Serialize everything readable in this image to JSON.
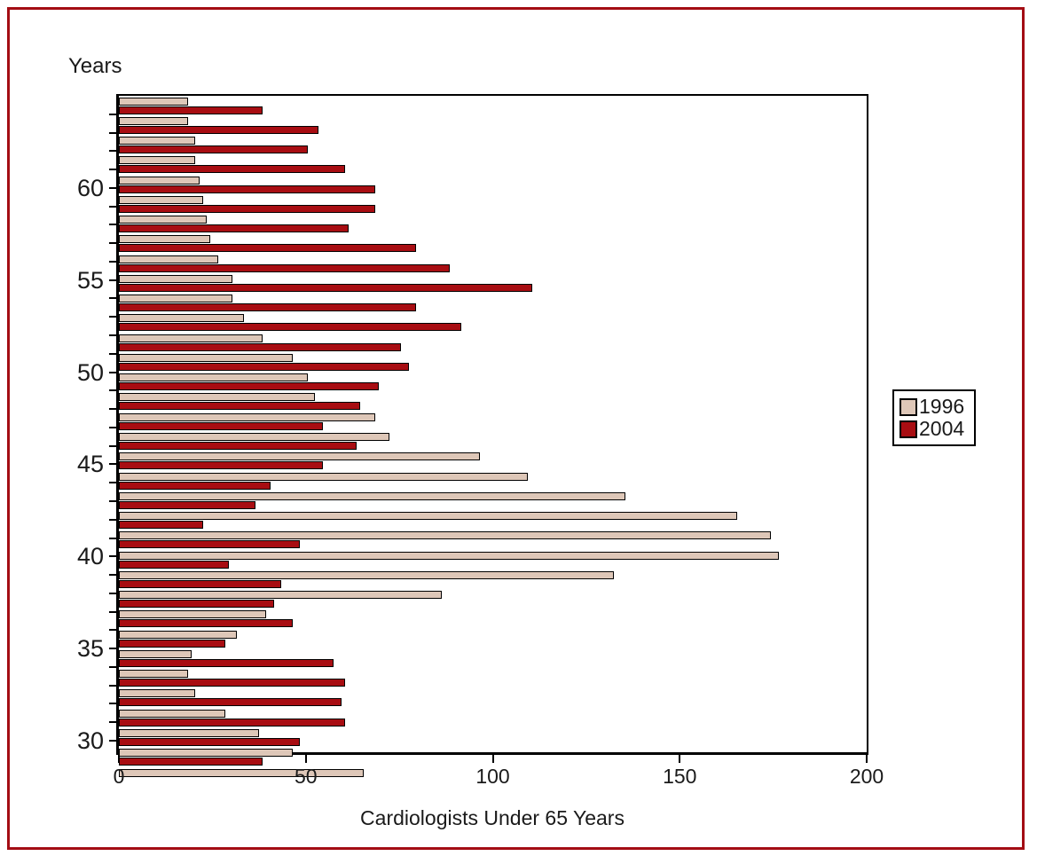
{
  "frame": {
    "border_color": "#A30D14"
  },
  "chart_data": {
    "type": "bar",
    "orientation": "horizontal",
    "title": "",
    "xlabel": "Cardiologists Under 65 Years",
    "ylabel": "Years",
    "xlim": [
      0,
      200
    ],
    "x_ticks": [
      0,
      50,
      100,
      150,
      200
    ],
    "y_tick_labels": [
      60,
      55,
      50,
      45,
      40,
      35,
      30
    ],
    "grid": false,
    "legend": {
      "position": "right",
      "entries": [
        {
          "label": "1996",
          "color": "#DEC7B8"
        },
        {
          "label": "2004",
          "color": "#A80D12"
        }
      ]
    },
    "categories": [
      64,
      63,
      62,
      61,
      60,
      59,
      58,
      57,
      56,
      55,
      54,
      53,
      52,
      51,
      50,
      49,
      48,
      47,
      46,
      45,
      44,
      43,
      42,
      41,
      40,
      39,
      38,
      37,
      36,
      35,
      34,
      33,
      32,
      31,
      30
    ],
    "series": [
      {
        "name": "1996",
        "color": "#DEC7B8",
        "values": [
          18,
          18,
          20,
          20,
          21,
          22,
          23,
          24,
          26,
          30,
          30,
          33,
          38,
          46,
          50,
          52,
          68,
          72,
          96,
          109,
          135,
          165,
          174,
          176,
          132,
          86,
          39,
          31,
          19,
          18,
          20,
          28,
          37,
          46,
          65
        ]
      },
      {
        "name": "2004",
        "color": "#A80D12",
        "values": [
          38,
          53,
          50,
          60,
          68,
          68,
          61,
          79,
          88,
          110,
          79,
          91,
          75,
          77,
          69,
          64,
          54,
          63,
          54,
          40,
          36,
          22,
          48,
          29,
          43,
          41,
          46,
          28,
          57,
          60,
          59,
          60,
          48,
          38,
          null
        ]
      }
    ]
  }
}
